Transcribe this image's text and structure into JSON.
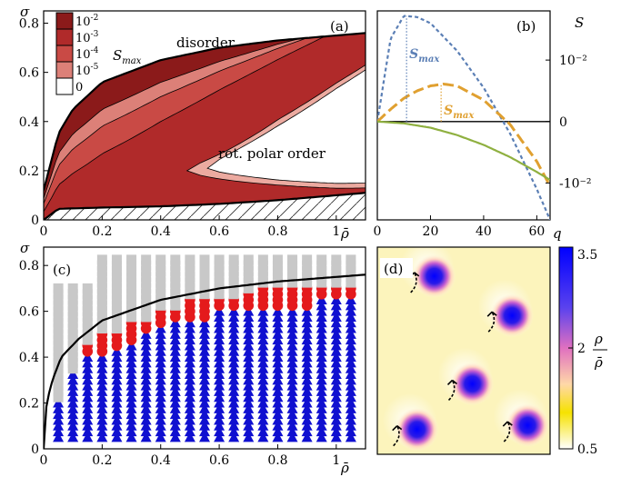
{
  "figure": {
    "panels": [
      {
        "label": "(a)"
      },
      {
        "label": "(b)"
      },
      {
        "label": "(c)"
      },
      {
        "label": "(d)"
      }
    ]
  },
  "chart_data": [
    {
      "panel": "a",
      "type": "area",
      "xlabel": "ρ̄",
      "ylabel": "σ",
      "xlim": [
        0,
        1.1
      ],
      "ylim": [
        0,
        0.85
      ],
      "xticks": [
        "0",
        "0.2",
        "0.4",
        "0.6",
        "0.8",
        "1"
      ],
      "yticks": [
        "0",
        "0.2",
        "0.4",
        "0.6",
        "0.8"
      ],
      "region_labels": [
        "disorder",
        "rot. polar order"
      ],
      "legend_title": "S_max",
      "legend_entries": [
        {
          "base": "10",
          "exp": "-2",
          "color": "#8b1a1a"
        },
        {
          "base": "10",
          "exp": "-3",
          "color": "#b02a2a"
        },
        {
          "base": "10",
          "exp": "-4",
          "color": "#c94a45"
        },
        {
          "base": "10",
          "exp": "-5",
          "color": "#dc8078"
        },
        {
          "base": "0",
          "exp": "",
          "color": "#ffffff"
        }
      ],
      "upper_boundary": [
        [
          0.0,
          0.12
        ],
        [
          0.05,
          0.35
        ],
        [
          0.1,
          0.45
        ],
        [
          0.2,
          0.56
        ],
        [
          0.4,
          0.65
        ],
        [
          0.6,
          0.7
        ],
        [
          0.8,
          0.73
        ],
        [
          1.0,
          0.75
        ],
        [
          1.1,
          0.76
        ]
      ],
      "lower_boundary": [
        [
          0.0,
          0.0
        ],
        [
          0.05,
          0.045
        ],
        [
          0.2,
          0.05
        ],
        [
          0.4,
          0.055
        ],
        [
          0.6,
          0.065
        ],
        [
          0.8,
          0.08
        ],
        [
          1.0,
          0.1
        ],
        [
          1.1,
          0.11
        ]
      ],
      "hatched_region": "below lower boundary"
    },
    {
      "panel": "b",
      "type": "line",
      "xlabel": "q",
      "ylabel": "S",
      "xlim": [
        0,
        65
      ],
      "ylim": [
        -0.016,
        0.018
      ],
      "xticks": [
        "0",
        "20",
        "40",
        "60"
      ],
      "yticks": [
        "10⁻²",
        "0",
        "-10⁻²"
      ],
      "annotations": [
        "S_max",
        "S_max"
      ],
      "series": [
        {
          "color": "#5b7fb5",
          "dash": "short",
          "x": [
            0,
            5,
            10,
            15,
            20,
            30,
            40,
            50,
            60,
            65
          ],
          "y": [
            0,
            0.0135,
            0.0172,
            0.017,
            0.016,
            0.0115,
            0.0055,
            -0.002,
            -0.011,
            -0.016
          ]
        },
        {
          "color": "#e0a030",
          "dash": "long",
          "x": [
            0,
            5,
            10,
            15,
            20,
            25,
            30,
            40,
            50,
            60,
            65
          ],
          "y": [
            0,
            0.002,
            0.0038,
            0.005,
            0.0058,
            0.0061,
            0.0058,
            0.0035,
            -0.0005,
            -0.0065,
            -0.0105
          ]
        },
        {
          "color": "#8fb040",
          "dash": "solid",
          "x": [
            0,
            10,
            20,
            30,
            40,
            50,
            60,
            65
          ],
          "y": [
            0,
            -0.0003,
            -0.001,
            -0.0022,
            -0.0038,
            -0.0058,
            -0.0082,
            -0.0095
          ]
        }
      ],
      "smax_markers": [
        {
          "series": 0,
          "x": 11
        },
        {
          "series": 1,
          "x": 24
        }
      ]
    },
    {
      "panel": "c",
      "type": "scatter",
      "xlabel": "ρ̄",
      "ylabel": "σ",
      "xlim": [
        0,
        1.1
      ],
      "ylim": [
        0,
        0.88
      ],
      "xticks": [
        "0",
        "0.2",
        "0.4",
        "0.6",
        "0.8",
        "1"
      ],
      "yticks": [
        "0",
        "0.2",
        "0.4",
        "0.6",
        "0.8"
      ],
      "grid_x": {
        "start": 0.05,
        "step": 0.05,
        "count": 21
      },
      "grid_y": {
        "start": 0.05,
        "step": 0.025
      },
      "top_sigma": [
        0.72,
        0.72,
        0.72,
        0.84,
        0.84,
        0.84,
        0.84,
        0.84,
        0.84,
        0.84,
        0.84,
        0.84,
        0.84,
        0.84,
        0.84,
        0.84,
        0.84,
        0.84,
        0.84,
        0.84,
        0.84
      ],
      "triangle_max": [
        0.2,
        0.33,
        0.4,
        0.4,
        0.43,
        0.47,
        0.5,
        0.53,
        0.55,
        0.57,
        0.57,
        0.6,
        0.6,
        0.6,
        0.6,
        0.62,
        0.62,
        0.62,
        0.65,
        0.65,
        0.65
      ],
      "circle_max": [
        0.0,
        0.0,
        0.45,
        0.5,
        0.5,
        0.55,
        0.57,
        0.6,
        0.62,
        0.65,
        0.65,
        0.65,
        0.67,
        0.68,
        0.7,
        0.7,
        0.7,
        0.72,
        0.72,
        0.72,
        0.72
      ],
      "boundary": [
        [
          0.0,
          0.0
        ],
        [
          0.01,
          0.2
        ],
        [
          0.03,
          0.3
        ],
        [
          0.06,
          0.4
        ],
        [
          0.12,
          0.48
        ],
        [
          0.2,
          0.56
        ],
        [
          0.4,
          0.65
        ],
        [
          0.6,
          0.7
        ],
        [
          0.8,
          0.73
        ],
        [
          1.0,
          0.75
        ],
        [
          1.1,
          0.76
        ]
      ],
      "colors": {
        "square": "#c8c8c8",
        "circle": "#e41a1c",
        "triangle": "#1010d0"
      }
    },
    {
      "panel": "d",
      "type": "heatmap",
      "colorbar_label_num": "ρ",
      "colorbar_label_den": "ρ̄",
      "colorbar_ticks": [
        "3.5",
        "2",
        "0.5"
      ],
      "colorbar_range": [
        0.5,
        3.5
      ],
      "blobs": [
        {
          "cx": 0.33,
          "cy": 0.14
        },
        {
          "cx": 0.78,
          "cy": 0.33
        },
        {
          "cx": 0.55,
          "cy": 0.66
        },
        {
          "cx": 0.23,
          "cy": 0.88
        },
        {
          "cx": 0.87,
          "cy": 0.86
        }
      ]
    }
  ]
}
